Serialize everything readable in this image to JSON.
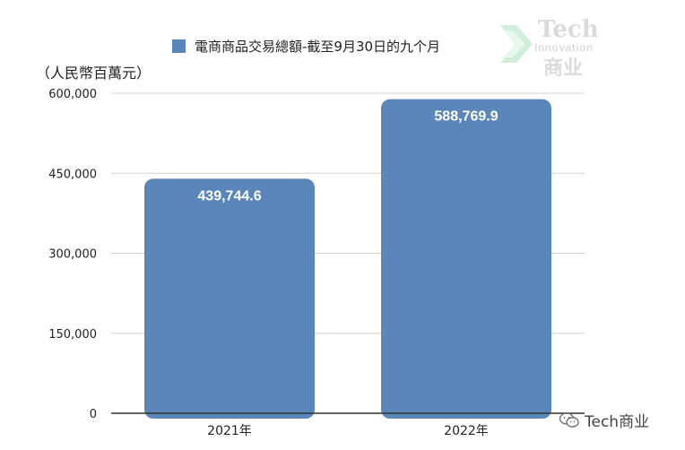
{
  "chart_data": {
    "type": "bar",
    "title": "電商商品交易總額-截至9月30日的九个月",
    "ylabel": "（人民幣百萬元）",
    "categories": [
      "2021年",
      "2022年"
    ],
    "series": [
      {
        "name": "電商商品交易總額-截至9月30日的九个月",
        "values": [
          439744.6,
          588769.9
        ]
      }
    ],
    "data_labels": [
      "439,744.6",
      "588,769.9"
    ],
    "ylim": [
      0,
      600000
    ],
    "yticks": [
      0,
      150000,
      300000,
      450000,
      600000
    ],
    "ytick_labels": [
      "0",
      "150,000",
      "300,000",
      "450,000",
      "600,000"
    ],
    "grid": true,
    "legend_position": "top",
    "bar_color": "#5b86b9"
  },
  "watermark": {
    "line1": "Tech",
    "line2": "Innovation",
    "line3": "商业"
  },
  "footer": {
    "wechat_label": "Tech商业"
  }
}
